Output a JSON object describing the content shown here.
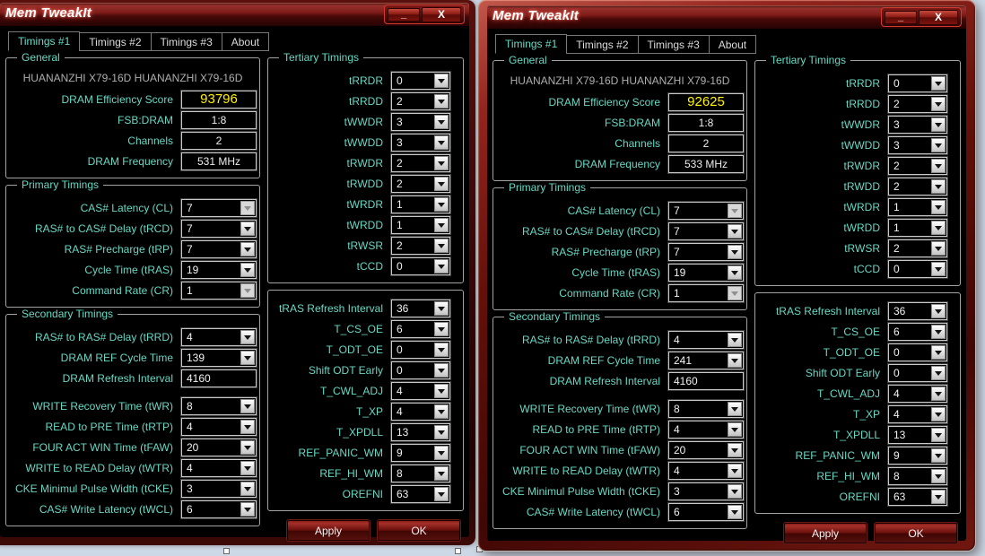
{
  "background_color": "#cdd8e6",
  "colors": {
    "label_teal": "#68d7c4",
    "score_yellow": "#fff200",
    "frame_red": "#93251e",
    "content_black": "#000000"
  },
  "windows": [
    {
      "title": "Mem TweakIt",
      "active": false,
      "controls": {
        "minimize": "_",
        "close": "X"
      },
      "tabs": [
        {
          "label": "Timings #1",
          "active": true
        },
        {
          "label": "Timings #2",
          "active": false
        },
        {
          "label": "Timings #3",
          "active": false
        },
        {
          "label": "About",
          "active": false
        }
      ],
      "general": {
        "legend": "General",
        "board_name": "HUANANZHI X79-16D HUANANZHI X79-16D",
        "rows": [
          {
            "label": "DRAM Efficiency Score",
            "value": "93796",
            "highlight": true
          },
          {
            "label": "FSB:DRAM",
            "value": "1:8"
          },
          {
            "label": "Channels",
            "value": "2"
          },
          {
            "label": "DRAM Frequency",
            "value": "531 MHz"
          }
        ]
      },
      "primary": {
        "legend": "Primary Timings",
        "rows": [
          {
            "label": "CAS# Latency (CL)",
            "value": "7",
            "disabled": true
          },
          {
            "label": "RAS# to CAS# Delay (tRCD)",
            "value": "7"
          },
          {
            "label": "RAS# Precharge (tRP)",
            "value": "7"
          },
          {
            "label": "Cycle Time (tRAS)",
            "value": "19"
          },
          {
            "label": "Command Rate (CR)",
            "value": "1",
            "disabled": true
          }
        ]
      },
      "secondary": {
        "legend": "Secondary Timings",
        "rows": [
          {
            "label": "RAS# to RAS# Delay (tRRD)",
            "value": "4"
          },
          {
            "label": "DRAM REF Cycle Time",
            "value": "139"
          },
          {
            "label": "DRAM Refresh Interval",
            "value": "4160",
            "type": "input"
          },
          {
            "label": "WRITE Recovery Time (tWR)",
            "value": "8"
          },
          {
            "label": "READ to PRE Time (tRTP)",
            "value": "4"
          },
          {
            "label": "FOUR ACT WIN Time (tFAW)",
            "value": "20"
          },
          {
            "label": "WRITE to READ Delay (tWTR)",
            "value": "4"
          },
          {
            "label": "CKE Minimul Pulse Width (tCKE)",
            "value": "3"
          },
          {
            "label": "CAS# Write Latency (tWCL)",
            "value": "6"
          }
        ]
      },
      "tertiary": {
        "legend": "Tertiary Timings",
        "rows": [
          {
            "label": "tRRDR",
            "value": "0"
          },
          {
            "label": "tRRDD",
            "value": "2"
          },
          {
            "label": "tWWDR",
            "value": "3"
          },
          {
            "label": "tWWDD",
            "value": "3"
          },
          {
            "label": "tRWDR",
            "value": "2"
          },
          {
            "label": "tRWDD",
            "value": "2"
          },
          {
            "label": "tWRDR",
            "value": "1"
          },
          {
            "label": "tWRDD",
            "value": "1"
          },
          {
            "label": "tRWSR",
            "value": "2"
          },
          {
            "label": "tCCD",
            "value": "0"
          }
        ]
      },
      "extended": {
        "legend": "",
        "rows": [
          {
            "label": "tRAS Refresh Interval",
            "value": "36"
          },
          {
            "label": "T_CS_OE",
            "value": "6"
          },
          {
            "label": "T_ODT_OE",
            "value": "0"
          },
          {
            "label": "Shift ODT Early",
            "value": "0"
          },
          {
            "label": "T_CWL_ADJ",
            "value": "4"
          },
          {
            "label": "T_XP",
            "value": "4"
          },
          {
            "label": "T_XPDLL",
            "value": "13"
          },
          {
            "label": "REF_PANIC_WM",
            "value": "9"
          },
          {
            "label": "REF_HI_WM",
            "value": "8"
          },
          {
            "label": "OREFNI",
            "value": "63"
          }
        ]
      },
      "buttons": {
        "apply": "Apply",
        "ok": "OK"
      }
    },
    {
      "title": "Mem TweakIt",
      "active": true,
      "controls": {
        "minimize": "_",
        "close": "X"
      },
      "tabs": [
        {
          "label": "Timings #1",
          "active": true
        },
        {
          "label": "Timings #2",
          "active": false
        },
        {
          "label": "Timings #3",
          "active": false
        },
        {
          "label": "About",
          "active": false
        }
      ],
      "general": {
        "legend": "General",
        "board_name": "HUANANZHI X79-16D HUANANZHI X79-16D",
        "rows": [
          {
            "label": "DRAM Efficiency Score",
            "value": "92625",
            "highlight": true
          },
          {
            "label": "FSB:DRAM",
            "value": "1:8"
          },
          {
            "label": "Channels",
            "value": "2"
          },
          {
            "label": "DRAM Frequency",
            "value": "533 MHz"
          }
        ]
      },
      "primary": {
        "legend": "Primary Timings",
        "rows": [
          {
            "label": "CAS# Latency (CL)",
            "value": "7",
            "disabled": true
          },
          {
            "label": "RAS# to CAS# Delay (tRCD)",
            "value": "7"
          },
          {
            "label": "RAS# Precharge (tRP)",
            "value": "7"
          },
          {
            "label": "Cycle Time (tRAS)",
            "value": "19"
          },
          {
            "label": "Command Rate (CR)",
            "value": "1",
            "disabled": true
          }
        ]
      },
      "secondary": {
        "legend": "Secondary Timings",
        "rows": [
          {
            "label": "RAS# to RAS# Delay (tRRD)",
            "value": "4"
          },
          {
            "label": "DRAM REF Cycle Time",
            "value": "241"
          },
          {
            "label": "DRAM Refresh Interval",
            "value": "4160",
            "type": "input"
          },
          {
            "label": "WRITE Recovery Time (tWR)",
            "value": "8"
          },
          {
            "label": "READ to PRE Time (tRTP)",
            "value": "4"
          },
          {
            "label": "FOUR ACT WIN Time (tFAW)",
            "value": "20"
          },
          {
            "label": "WRITE to READ Delay (tWTR)",
            "value": "4"
          },
          {
            "label": "CKE Minimul Pulse Width (tCKE)",
            "value": "3"
          },
          {
            "label": "CAS# Write Latency (tWCL)",
            "value": "6"
          }
        ]
      },
      "tertiary": {
        "legend": "Tertiary Timings",
        "rows": [
          {
            "label": "tRRDR",
            "value": "0"
          },
          {
            "label": "tRRDD",
            "value": "2"
          },
          {
            "label": "tWWDR",
            "value": "3"
          },
          {
            "label": "tWWDD",
            "value": "3"
          },
          {
            "label": "tRWDR",
            "value": "2"
          },
          {
            "label": "tRWDD",
            "value": "2"
          },
          {
            "label": "tWRDR",
            "value": "1"
          },
          {
            "label": "tWRDD",
            "value": "1"
          },
          {
            "label": "tRWSR",
            "value": "2"
          },
          {
            "label": "tCCD",
            "value": "0"
          }
        ]
      },
      "extended": {
        "legend": "",
        "rows": [
          {
            "label": "tRAS Refresh Interval",
            "value": "36"
          },
          {
            "label": "T_CS_OE",
            "value": "6"
          },
          {
            "label": "T_ODT_OE",
            "value": "0"
          },
          {
            "label": "Shift ODT Early",
            "value": "0"
          },
          {
            "label": "T_CWL_ADJ",
            "value": "4"
          },
          {
            "label": "T_XP",
            "value": "4"
          },
          {
            "label": "T_XPDLL",
            "value": "13"
          },
          {
            "label": "REF_PANIC_WM",
            "value": "9"
          },
          {
            "label": "REF_HI_WM",
            "value": "8"
          },
          {
            "label": "OREFNI",
            "value": "63"
          }
        ]
      },
      "buttons": {
        "apply": "Apply",
        "ok": "OK"
      }
    }
  ]
}
